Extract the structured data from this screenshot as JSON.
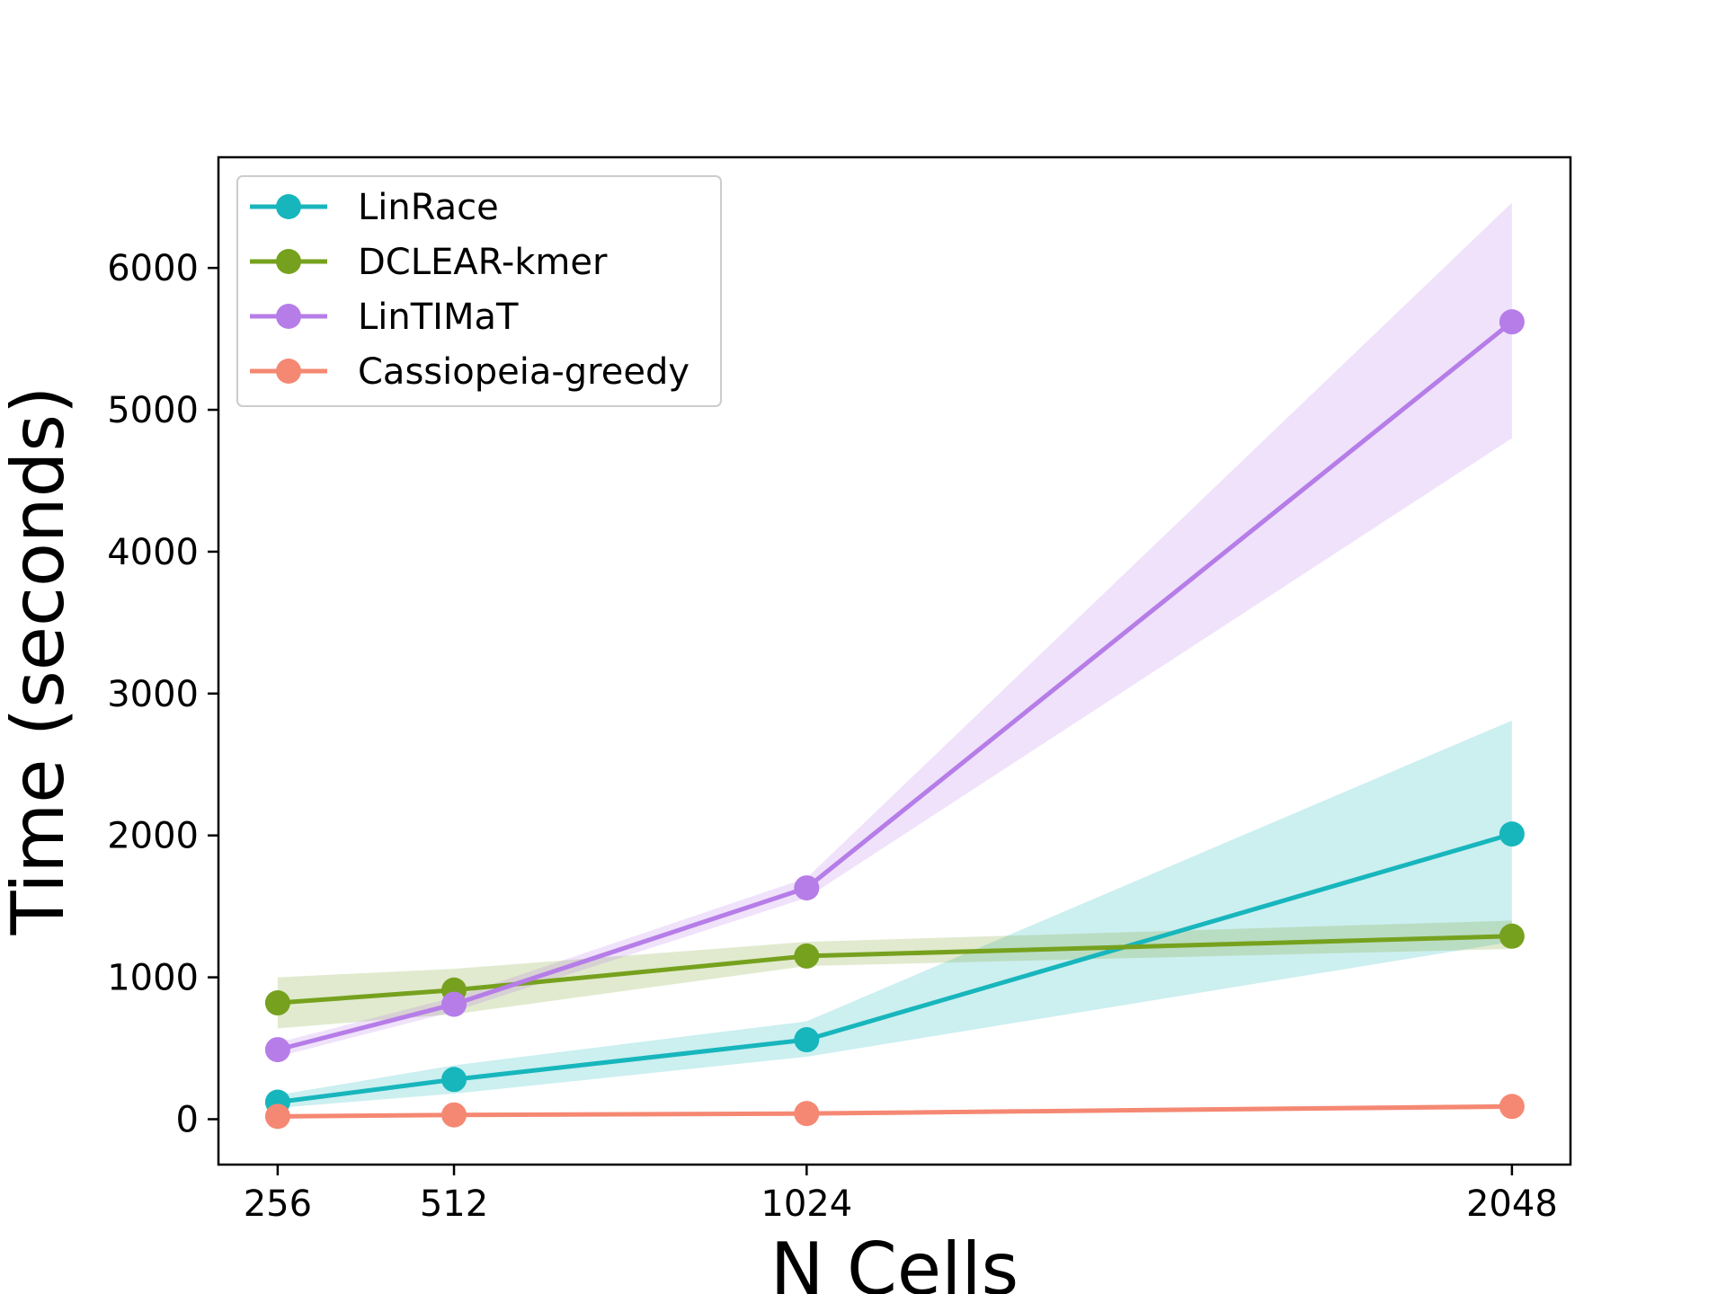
{
  "chart_data": {
    "type": "line",
    "xlabel": "N Cells",
    "ylabel": "Time (seconds)",
    "x": [
      256,
      512,
      1024,
      2048
    ],
    "xticks": [
      "256",
      "512",
      "1024",
      "2048"
    ],
    "yticks": [
      "0",
      "1000",
      "2000",
      "3000",
      "4000",
      "5000",
      "6000"
    ],
    "ylim": [
      -320,
      6780
    ],
    "xlim": [
      170,
      2133
    ],
    "grid": false,
    "legend_position": "top-left",
    "series": [
      {
        "name": "LinRace",
        "color": "#17b6bc",
        "values": [
          120,
          280,
          560,
          2010
        ],
        "band_lower": [
          80,
          180,
          440,
          1250
        ],
        "band_upper": [
          170,
          380,
          690,
          2810
        ]
      },
      {
        "name": "DCLEAR-kmer",
        "color": "#76a11e",
        "values": [
          820,
          910,
          1150,
          1290
        ],
        "band_lower": [
          640,
          740,
          1080,
          1200
        ],
        "band_upper": [
          1000,
          1060,
          1250,
          1400
        ]
      },
      {
        "name": "LinTIMaT",
        "color": "#b67de8",
        "values": [
          490,
          810,
          1630,
          5620
        ],
        "band_lower": [
          440,
          760,
          1560,
          4800
        ],
        "band_upper": [
          540,
          860,
          1700,
          6460
        ]
      },
      {
        "name": "Cassiopeia-greedy",
        "color": "#f58873",
        "values": [
          20,
          30,
          40,
          90
        ],
        "band_lower": [
          10,
          20,
          30,
          70
        ],
        "band_upper": [
          30,
          40,
          50,
          110
        ]
      }
    ]
  }
}
